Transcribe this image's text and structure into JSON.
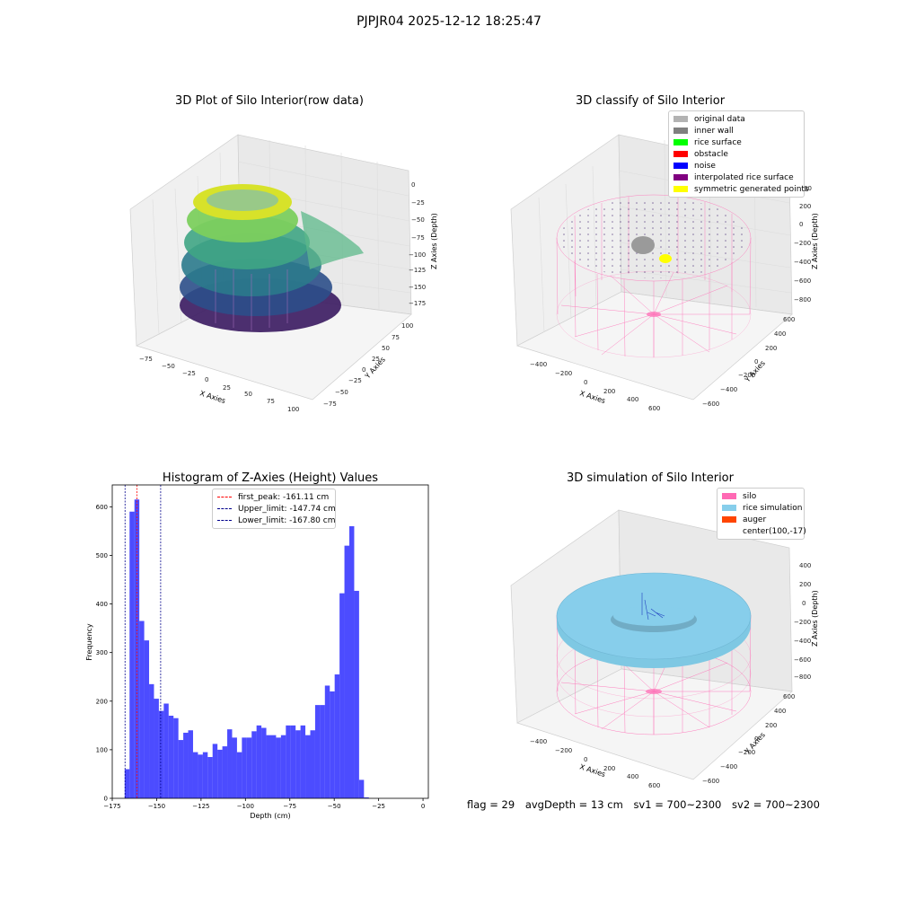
{
  "suptitle": "PJPJR04 2025-12-12 18:25:47",
  "raw_plot": {
    "title": "3D Plot of Silo Interior(row data)",
    "xlabel": "X Axies",
    "ylabel": "Y Axies",
    "zlabel": "Z Axies (Depth)",
    "x_ticks": [
      "−75",
      "−50",
      "−25",
      "0",
      "25",
      "50",
      "75",
      "100"
    ],
    "y_ticks": [
      "100",
      "75",
      "50",
      "25",
      "0",
      "−25",
      "−50",
      "−75"
    ],
    "z_ticks": [
      "0",
      "−25",
      "−50",
      "−75",
      "−100",
      "−125",
      "−150",
      "−175"
    ]
  },
  "classify_plot": {
    "title": "3D classify of Silo Interior",
    "xlabel": "X Axies",
    "ylabel": "Y Axies",
    "zlabel": "Z Axies (Depth)",
    "x_ticks": [
      "−400",
      "−200",
      "0",
      "200",
      "400",
      "600"
    ],
    "y_ticks": [
      "600",
      "400",
      "200",
      "0",
      "−200",
      "−400",
      "−600"
    ],
    "z_ticks": [
      "200",
      "0",
      "−200",
      "−400",
      "−600",
      "−800"
    ],
    "z_ticks_partial": [
      "00"
    ],
    "legend": [
      {
        "label": "original data",
        "color": "#b3b3b3"
      },
      {
        "label": "inner wall",
        "color": "#808080"
      },
      {
        "label": "rice surface",
        "color": "#00ff00"
      },
      {
        "label": "obstacle",
        "color": "#ff0000"
      },
      {
        "label": "noise",
        "color": "#0000ff"
      },
      {
        "label": "interpolated rice surface",
        "color": "#800080"
      },
      {
        "label": "symmetric generated points",
        "color": "#ffff00"
      }
    ]
  },
  "chart_data": [
    {
      "type": "bar",
      "title": "Histogram of Z-Axies (Height) Values",
      "xlabel": "Depth (cm)",
      "ylabel": "Frequency",
      "xlim": [
        -175,
        3
      ],
      "ylim": [
        0,
        645
      ],
      "x_ticks": [
        -175,
        -150,
        -125,
        -100,
        -75,
        -50,
        -25,
        0
      ],
      "y_ticks": [
        0,
        100,
        200,
        300,
        400,
        500,
        600
      ],
      "bin_start": -168,
      "bin_width": 2.75,
      "values": [
        60,
        590,
        615,
        365,
        325,
        235,
        205,
        180,
        195,
        170,
        165,
        120,
        135,
        140,
        95,
        90,
        95,
        85,
        112,
        100,
        107,
        142,
        125,
        95,
        125,
        125,
        138,
        150,
        145,
        130,
        130,
        125,
        130,
        150,
        150,
        140,
        150,
        130,
        140,
        192,
        192,
        232,
        220,
        255,
        422,
        520,
        560,
        427,
        38,
        2
      ],
      "bar_color": "#0000ff",
      "vlines": [
        {
          "label": "first_peak: -161.11 cm",
          "x": -161.11,
          "color": "#ff0000"
        },
        {
          "label": "Upper_limit: -147.74 cm",
          "x": -147.74,
          "color": "#00008b"
        },
        {
          "label": "Lower_limit: -167.80 cm",
          "x": -167.8,
          "color": "#00008b"
        }
      ]
    }
  ],
  "sim_plot": {
    "title": "3D simulation of Silo Interior",
    "xlabel": "X Axies",
    "ylabel": "Y Axies",
    "zlabel": "Z Axies (Depth)",
    "x_ticks": [
      "−400",
      "−200",
      "0",
      "200",
      "400",
      "600"
    ],
    "y_ticks": [
      "600",
      "400",
      "200",
      "0",
      "−200",
      "−400",
      "−600"
    ],
    "z_ticks": [
      "400",
      "200",
      "0",
      "−200",
      "−400",
      "−600",
      "−800"
    ],
    "legend": [
      {
        "label": "silo",
        "color": "#ff69b4"
      },
      {
        "label": "rice simulation",
        "color": "#87ceeb"
      },
      {
        "label": "auger",
        "color": "#ff4500"
      },
      {
        "label": "center(100,-17)",
        "color": ""
      }
    ]
  },
  "status": {
    "flag": "flag = 29",
    "avg": "avgDepth = 13 cm",
    "sv1": "sv1 = 700~2300",
    "sv2": "sv2 = 700~2300"
  }
}
